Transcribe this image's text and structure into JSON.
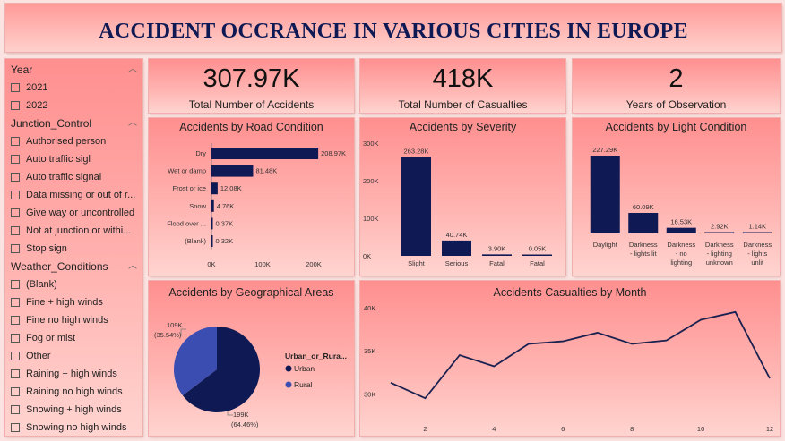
{
  "title": "ACCIDENT OCCRANCE IN VARIOUS CITIES IN EUROPE",
  "slicers": [
    {
      "header": "Year",
      "items": [
        "2021",
        "2022"
      ]
    },
    {
      "header": "Junction_Control",
      "items": [
        "Authorised person",
        "Auto traffic sigl",
        "Auto traffic signal",
        "Data missing or out of r...",
        "Give way or uncontrolled",
        "Not at junction or withi...",
        "Stop sign"
      ]
    },
    {
      "header": "Weather_Conditions",
      "items": [
        "(Blank)",
        "Fine + high winds",
        "Fine no high winds",
        "Fog or mist",
        "Other",
        "Raining + high winds",
        "Raining no high winds",
        "Snowing + high winds",
        "Snowing no high winds"
      ]
    }
  ],
  "kpis": {
    "accidents": {
      "value": "307.97K",
      "label": "Total Number of Accidents"
    },
    "casualties": {
      "value": "418K",
      "label": "Total Number of Casualties"
    },
    "years": {
      "value": "2",
      "label": "Years of Observation"
    }
  },
  "colors": {
    "accent": "#0f1a55",
    "pie_rural": "#3b4db0",
    "line": "#1a2150"
  },
  "chart_data": [
    {
      "type": "bar",
      "orientation": "horizontal",
      "title": "Accidents by Road Condition",
      "categories": [
        "Dry",
        "Wet or damp",
        "Frost or ice",
        "Snow",
        "Flood over ...",
        "(Blank)"
      ],
      "values": [
        208970,
        81480,
        12080,
        4760,
        370,
        320
      ],
      "data_labels": [
        "208.97K",
        "81.48K",
        "12.08K",
        "4.76K",
        "0.37K",
        "0.32K"
      ],
      "xticks": [
        "0K",
        "100K",
        "200K"
      ],
      "xlim": [
        0,
        200000
      ]
    },
    {
      "type": "bar",
      "title": "Accidents by Severity",
      "categories": [
        "Slight",
        "Serious",
        "Fatal",
        "Fatal"
      ],
      "values": [
        263280,
        40740,
        3900,
        50
      ],
      "data_labels": [
        "263.28K",
        "40.74K",
        "3.90K",
        "0.05K"
      ],
      "yticks": [
        "0K",
        "100K",
        "200K",
        "300K"
      ],
      "ylim": [
        0,
        300000
      ]
    },
    {
      "type": "bar",
      "title": "Accidents by Light Condition",
      "categories": [
        "Daylight",
        "Darkness - lights lit",
        "Darkness - no lighting",
        "Darkness - lighting unknown",
        "Darkness - lights unlit"
      ],
      "category_lines": [
        [
          "Daylight"
        ],
        [
          "Darkness",
          "- lights lit"
        ],
        [
          "Darkness",
          "- no",
          "lighting"
        ],
        [
          "Darkness",
          "- lighting",
          "unknown"
        ],
        [
          "Darkness",
          "- lights",
          "unlit"
        ]
      ],
      "values": [
        227290,
        60090,
        16530,
        2920,
        1140
      ],
      "data_labels": [
        "227.29K",
        "60.09K",
        "16.53K",
        "2.92K",
        "1.14K"
      ]
    },
    {
      "type": "pie",
      "title": "Accidents by Geographical Areas",
      "legend_title": "Urban_or_Rura...",
      "slices": [
        {
          "name": "Urban",
          "value": 199000,
          "label": "199K",
          "pct": "(64.46%)"
        },
        {
          "name": "Rural",
          "value": 109000,
          "label": "109K",
          "pct": "(35.54%)"
        }
      ]
    },
    {
      "type": "line",
      "title": "Accidents Casualties by Month",
      "x": [
        1,
        2,
        3,
        4,
        5,
        6,
        7,
        8,
        9,
        10,
        11,
        12
      ],
      "y": [
        31300,
        29500,
        34500,
        33200,
        35800,
        36100,
        37100,
        35800,
        36200,
        38600,
        39500,
        31800
      ],
      "xticks": [
        "2",
        "4",
        "6",
        "8",
        "10",
        "12"
      ],
      "yticks": [
        "30K",
        "35K",
        "40K"
      ],
      "ylim": [
        29000,
        40000
      ]
    }
  ]
}
